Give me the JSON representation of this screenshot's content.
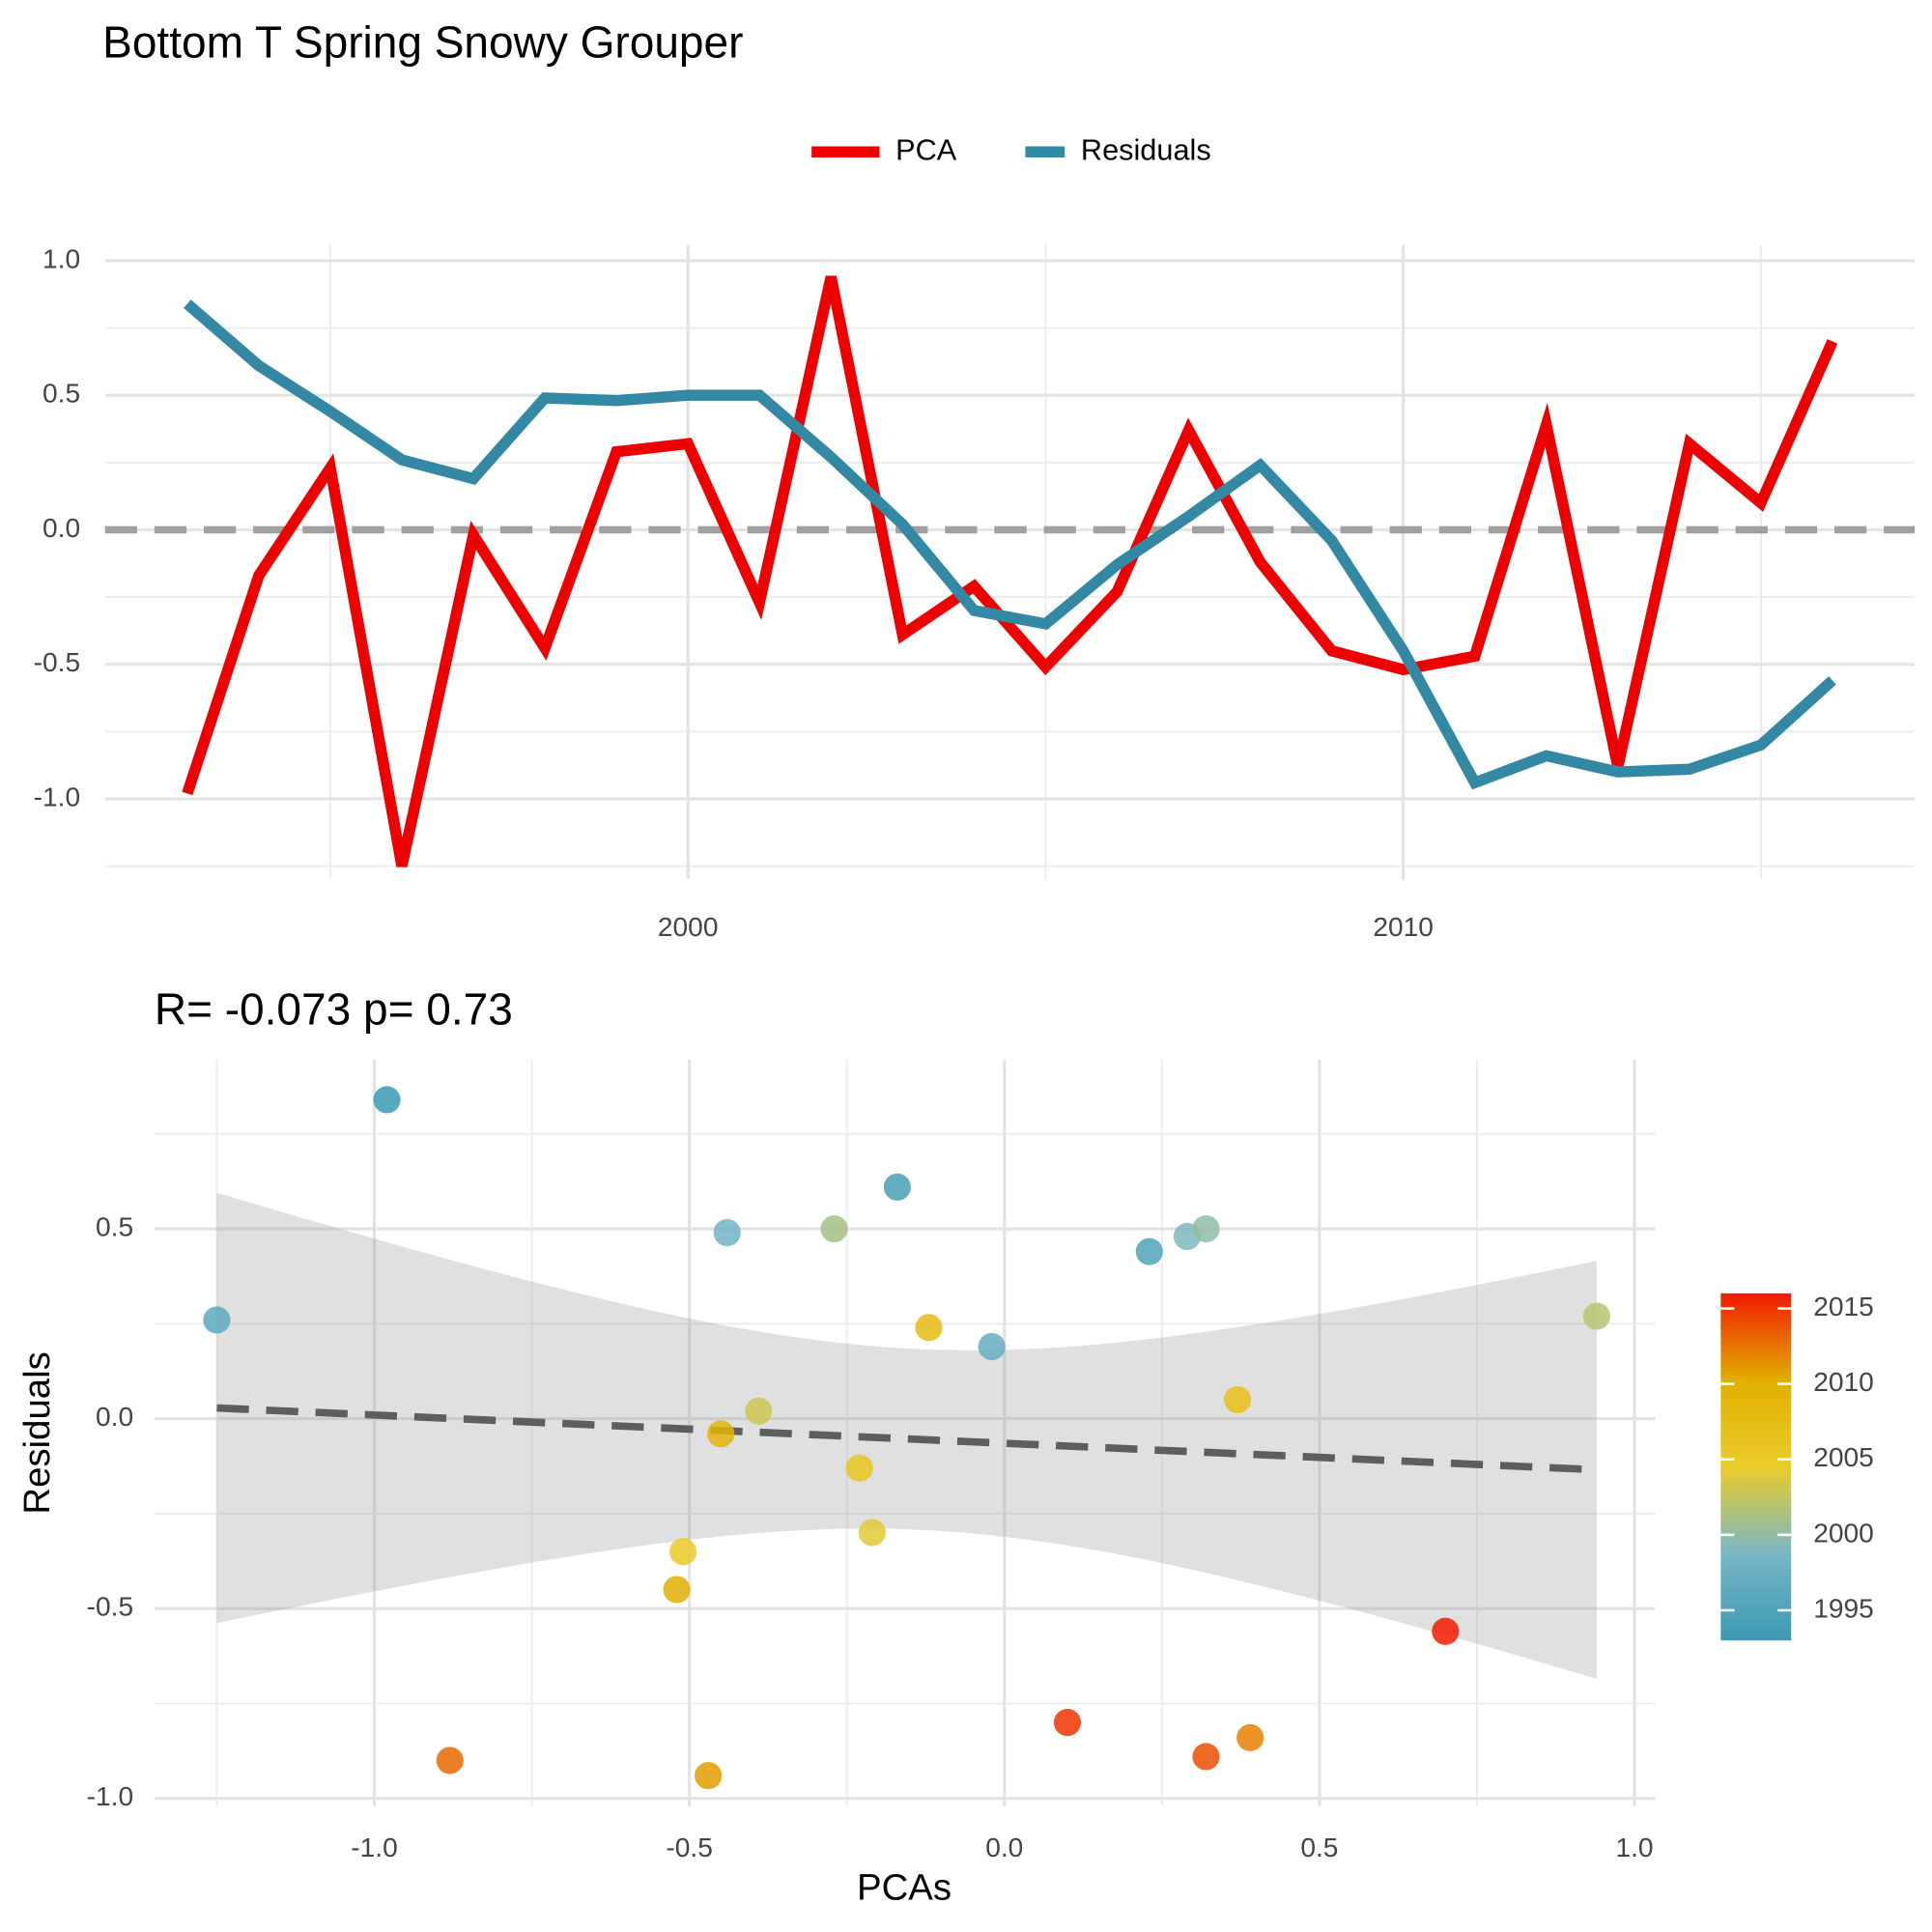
{
  "chart_data": [
    {
      "type": "line",
      "title": "Bottom T Spring Snowy Grouper",
      "x": [
        1993,
        1994,
        1995,
        1996,
        1997,
        1998,
        1999,
        2000,
        2001,
        2002,
        2003,
        2004,
        2005,
        2006,
        2007,
        2008,
        2009,
        2010,
        2011,
        2012,
        2013,
        2014,
        2015,
        2016
      ],
      "series": [
        {
          "name": "PCA",
          "color": "#ee0000",
          "values": [
            -0.98,
            -0.17,
            0.23,
            -1.25,
            -0.02,
            -0.44,
            0.29,
            0.32,
            -0.27,
            0.94,
            -0.39,
            -0.21,
            -0.51,
            -0.23,
            0.37,
            -0.12,
            -0.45,
            -0.52,
            -0.47,
            0.39,
            -0.88,
            0.32,
            0.1,
            0.7
          ]
        },
        {
          "name": "Residuals",
          "color": "#3389a3",
          "values": [
            0.84,
            0.61,
            0.44,
            0.26,
            0.19,
            0.49,
            0.48,
            0.5,
            0.5,
            0.27,
            0.02,
            -0.3,
            -0.35,
            -0.13,
            0.05,
            0.24,
            -0.04,
            -0.45,
            -0.94,
            -0.84,
            -0.9,
            -0.89,
            -0.8,
            -0.56
          ]
        }
      ],
      "xlim": [
        1991.85,
        2017.15
      ],
      "xticks": [
        2000,
        2010
      ],
      "ylim": [
        -1.3,
        1.06
      ],
      "yticks": [
        {
          "value": -1,
          "label": "-1.0"
        },
        -0.5,
        {
          "value": 0,
          "label": "0.0"
        },
        0.5,
        {
          "value": 1,
          "label": "1.0"
        }
      ],
      "reference_line": 0,
      "grid": true,
      "legend": "top"
    },
    {
      "type": "scatter",
      "title": "R= -0.073  p= 0.73",
      "x_label": "PCAs",
      "y_label": "Residuals",
      "x": [
        -0.98,
        -0.17,
        0.23,
        -1.25,
        -0.02,
        -0.44,
        0.29,
        0.32,
        -0.27,
        0.94,
        -0.39,
        -0.21,
        -0.51,
        -0.23,
        0.37,
        -0.12,
        -0.45,
        -0.52,
        -0.47,
        0.39,
        -0.88,
        0.32,
        0.1,
        0.7
      ],
      "y": [
        0.84,
        0.61,
        0.44,
        0.26,
        0.19,
        0.49,
        0.48,
        0.5,
        0.5,
        0.27,
        0.02,
        -0.3,
        -0.35,
        -0.13,
        0.05,
        0.24,
        -0.04,
        -0.45,
        -0.94,
        -0.84,
        -0.9,
        -0.89,
        -0.8,
        -0.56
      ],
      "color_values": [
        1993,
        1994,
        1995,
        1996,
        1997,
        1998,
        1999,
        2000,
        2001,
        2002,
        2003,
        2004,
        2005,
        2006,
        2007,
        2008,
        2009,
        2010,
        2011,
        2012,
        2013,
        2014,
        2015,
        2016
      ],
      "colors": [
        "#3B9AB2",
        "#78B7C5",
        "#EBCC2A",
        "#E1AF00",
        "#F21A00"
      ],
      "colorlim": [
        1993,
        2016
      ],
      "colorbar_ticks": [
        1995,
        2000,
        2005,
        2010,
        2015
      ],
      "xlim": [
        -1.349,
        1.033
      ],
      "xticks": [
        {
          "value": -1,
          "label": "-1.0"
        },
        -0.5,
        {
          "value": 0,
          "label": "0.0"
        },
        0.5,
        {
          "value": 1,
          "label": "1.0"
        }
      ],
      "ylim": [
        -1.02,
        0.945
      ],
      "yticks": [
        {
          "value": -1,
          "label": "-1.0"
        },
        -0.5,
        {
          "value": 0,
          "label": "0.0"
        },
        0.5
      ],
      "grid": true,
      "regression": true
    }
  ]
}
